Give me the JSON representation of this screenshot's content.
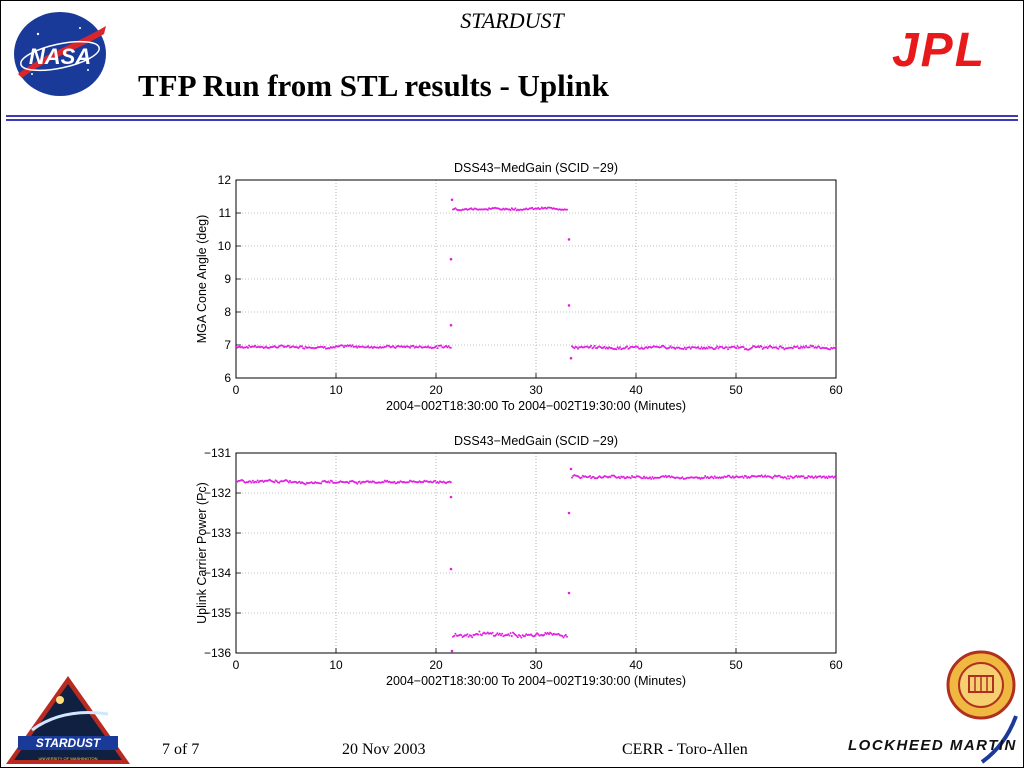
{
  "header": {
    "mission": "STARDUST",
    "title": "TFP Run from STL results - Uplink"
  },
  "logos": {
    "nasa": "NASA",
    "jpl": "JPL",
    "stardust": "STARDUST",
    "stardust_sub": "UNIVERSITY OF WASHINGTON",
    "lockheed": "LOCKHEED MARTIN"
  },
  "footer": {
    "page": "7 of 7",
    "date": "20 Nov 2003",
    "credit": "CERR - Toro-Allen"
  },
  "colors": {
    "series": "#e020e0",
    "title_rule": "#3d3ab8",
    "jpl_red": "#e8191b",
    "nasa_blue": "#1a3a9a",
    "nasa_red": "#d8262c"
  },
  "chart_data": [
    {
      "type": "scatter",
      "title": "DSS43−MedGain (SCID −29)",
      "xlabel": "2004−002T18:30:00 To 2004−002T19:30:00 (Minutes)",
      "ylabel": "MGA Cone Angle (deg)",
      "xlim": [
        0,
        60
      ],
      "ylim": [
        6,
        12
      ],
      "xticks": [
        "0",
        "10",
        "20",
        "30",
        "40",
        "50",
        "60"
      ],
      "yticks": [
        "6",
        "7",
        "8",
        "9",
        "10",
        "11",
        "12"
      ],
      "grid": true,
      "series": [
        {
          "segments": [
            {
              "x_range": [
                0,
                21.5
              ],
              "level": 6.95,
              "jitter": 0.06
            },
            {
              "x_range": [
                21.7,
                33.2
              ],
              "level": 11.13,
              "jitter": 0.05
            },
            {
              "x_range": [
                33.6,
                60
              ],
              "level": 6.92,
              "jitter": 0.07
            }
          ],
          "points": [
            {
              "x": 21.5,
              "y": 7.6
            },
            {
              "x": 21.5,
              "y": 9.6
            },
            {
              "x": 21.6,
              "y": 11.4
            },
            {
              "x": 33.3,
              "y": 10.2
            },
            {
              "x": 33.3,
              "y": 8.2
            },
            {
              "x": 33.5,
              "y": 6.6
            }
          ]
        }
      ]
    },
    {
      "type": "scatter",
      "title": "DSS43−MedGain (SCID −29)",
      "xlabel": "2004−002T18:30:00 To 2004−002T19:30:00 (Minutes)",
      "ylabel": "Uplink Carrier Power (Pc)",
      "xlim": [
        0,
        60
      ],
      "ylim": [
        -136,
        -131
      ],
      "xticks": [
        "0",
        "10",
        "20",
        "30",
        "40",
        "50",
        "60"
      ],
      "yticks": [
        "−131",
        "−132",
        "−133",
        "−134",
        "−135",
        "−136"
      ],
      "grid": true,
      "series": [
        {
          "segments": [
            {
              "x_range": [
                0,
                21.5
              ],
              "level": -131.72,
              "jitter": 0.05
            },
            {
              "x_range": [
                21.7,
                33.2
              ],
              "level": -135.55,
              "jitter": 0.08
            },
            {
              "x_range": [
                33.6,
                60
              ],
              "level": -131.6,
              "jitter": 0.05
            }
          ],
          "points": [
            {
              "x": 21.5,
              "y": -132.1
            },
            {
              "x": 21.5,
              "y": -133.9
            },
            {
              "x": 21.6,
              "y": -135.95
            },
            {
              "x": 33.3,
              "y": -132.5
            },
            {
              "x": 33.3,
              "y": -134.5
            },
            {
              "x": 33.5,
              "y": -131.4
            }
          ]
        }
      ]
    }
  ]
}
